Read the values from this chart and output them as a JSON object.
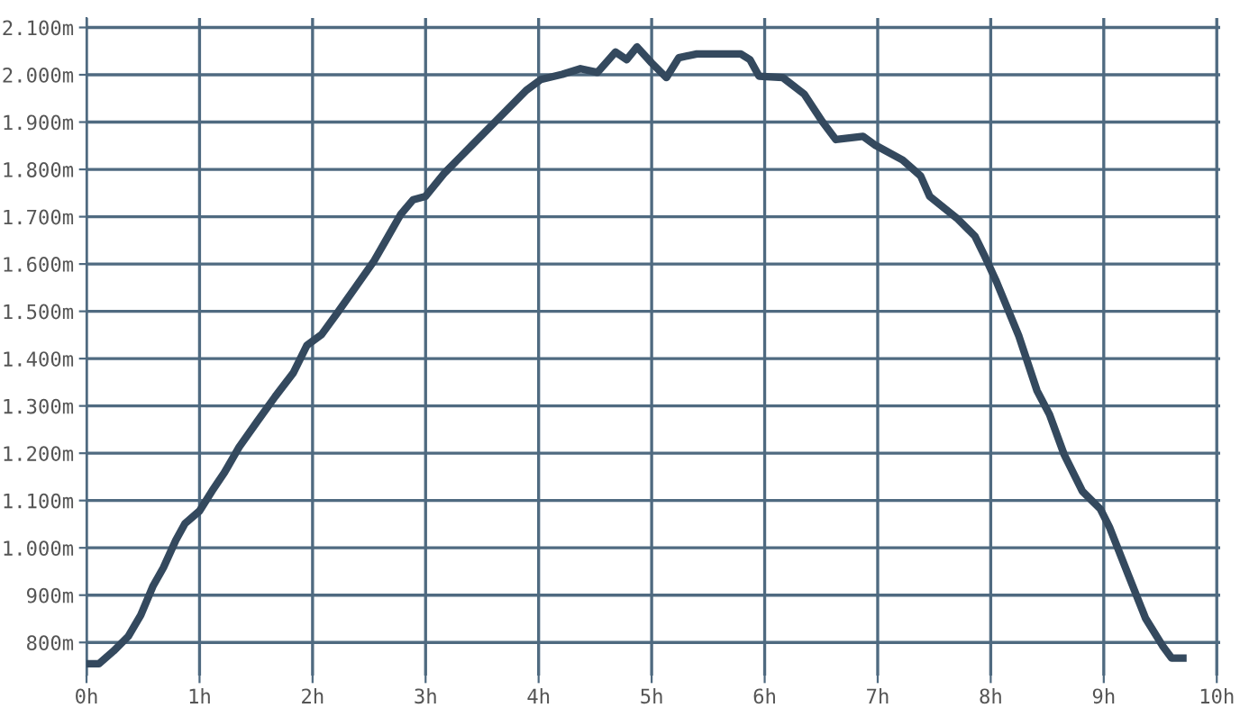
{
  "chart_data": {
    "type": "line",
    "x": [
      0,
      0.11,
      0.24,
      0.37,
      0.48,
      0.59,
      0.68,
      0.79,
      0.87,
      1.0,
      1.11,
      1.22,
      1.35,
      1.51,
      1.67,
      1.83,
      1.95,
      2.08,
      2.22,
      2.38,
      2.54,
      2.67,
      2.78,
      2.89,
      3.0,
      3.17,
      3.41,
      3.65,
      3.89,
      4.02,
      4.21,
      4.37,
      4.52,
      4.68,
      4.78,
      4.87,
      5.0,
      5.13,
      5.24,
      5.4,
      5.79,
      5.87,
      5.95,
      6.16,
      6.35,
      6.51,
      6.63,
      6.87,
      6.98,
      7.22,
      7.38,
      7.46,
      7.7,
      7.86,
      7.94,
      8.05,
      8.25,
      8.41,
      8.52,
      8.65,
      8.81,
      8.97,
      9.05,
      9.21,
      9.37,
      9.52,
      9.6,
      9.7
    ],
    "series": [
      {
        "color": "#34495e",
        "values": [
          755,
          755,
          782,
          813,
          858,
          920,
          958,
          1016,
          1051,
          1078,
          1120,
          1159,
          1213,
          1267,
          1320,
          1370,
          1428,
          1451,
          1497,
          1551,
          1605,
          1659,
          1705,
          1736,
          1743,
          1793,
          1851,
          1909,
          1967,
          1990,
          2001,
          2013,
          2005,
          2048,
          2032,
          2059,
          2025,
          1994,
          2036,
          2044,
          2044,
          2032,
          1997,
          1994,
          1959,
          1901,
          1863,
          1870,
          1851,
          1820,
          1786,
          1743,
          1697,
          1659,
          1620,
          1563,
          1447,
          1332,
          1282,
          1197,
          1120,
          1082,
          1044,
          947,
          851,
          793,
          767,
          767
        ]
      }
    ],
    "xlim": [
      0,
      10.03
    ],
    "ylim": [
      730,
      2120
    ],
    "xticks": [
      {
        "value": 0,
        "label": "0h"
      },
      {
        "value": 1,
        "label": "1h"
      },
      {
        "value": 2,
        "label": "2h"
      },
      {
        "value": 3,
        "label": "3h"
      },
      {
        "value": 4,
        "label": "4h"
      },
      {
        "value": 5,
        "label": "5h"
      },
      {
        "value": 6,
        "label": "6h"
      },
      {
        "value": 7,
        "label": "7h"
      },
      {
        "value": 8,
        "label": "8h"
      },
      {
        "value": 9,
        "label": "9h"
      },
      {
        "value": 10,
        "label": "10h"
      }
    ],
    "yticks": [
      {
        "value": 800,
        "label": "800m"
      },
      {
        "value": 900,
        "label": "900m"
      },
      {
        "value": 1000,
        "label": "1.000m"
      },
      {
        "value": 1100,
        "label": "1.100m"
      },
      {
        "value": 1200,
        "label": "1.200m"
      },
      {
        "value": 1300,
        "label": "1.300m"
      },
      {
        "value": 1400,
        "label": "1.400m"
      },
      {
        "value": 1500,
        "label": "1.500m"
      },
      {
        "value": 1600,
        "label": "1.600m"
      },
      {
        "value": 1700,
        "label": "1.700m"
      },
      {
        "value": 1800,
        "label": "1.800m"
      },
      {
        "value": 1900,
        "label": "1.900m"
      },
      {
        "value": 2000,
        "label": "2.000m"
      },
      {
        "value": 2100,
        "label": "2.100m"
      }
    ],
    "grid": true,
    "marker": "none",
    "line_style": "solid"
  }
}
